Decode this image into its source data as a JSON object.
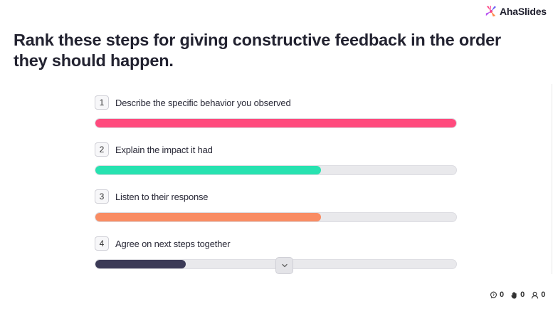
{
  "brand": {
    "name": "AhaSlides"
  },
  "question": {
    "title": "Rank these steps for giving constructive feedback in the order they should happen."
  },
  "items": [
    {
      "rank": "1",
      "label": "Describe the specific behavior you observed",
      "fraction": 1.0,
      "color": "#ff4a7d"
    },
    {
      "rank": "2",
      "label": "Explain the impact it had",
      "fraction": 0.625,
      "color": "#27e2b0"
    },
    {
      "rank": "3",
      "label": "Listen to their response",
      "fraction": 0.625,
      "color": "#f98c63"
    },
    {
      "rank": "4",
      "label": "Agree on next steps together",
      "fraction": 0.25,
      "color": "#3b3a56"
    }
  ],
  "stats": {
    "comments": "0",
    "reactions": "0",
    "participants": "0"
  }
}
